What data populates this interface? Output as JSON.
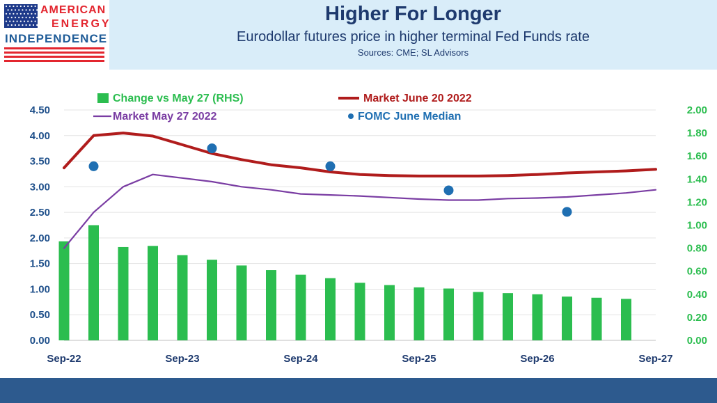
{
  "logo": {
    "line1": "AMERICAN",
    "line2": "ENERGY",
    "line3": "INDEPENDENCE"
  },
  "header": {
    "title": "Higher For Longer",
    "subtitle": "Eurodollar futures price in higher terminal Fed Funds rate",
    "sources": "Sources: CME; SL Advisors"
  },
  "colors": {
    "bars": "#2bbd4f",
    "june": "#b01c1c",
    "may": "#7a3da3",
    "fomc": "#1f6fb2",
    "left_axis": "#1e4f8a",
    "right_axis": "#2bbd4f"
  },
  "chart_data": {
    "type": "bar",
    "x_ticks": [
      "Sep-22",
      "Sep-23",
      "Sep-24",
      "Sep-25",
      "Sep-26",
      "Sep-27"
    ],
    "legend": [
      {
        "key": "bars",
        "label": "Change vs May 27 (RHS)"
      },
      {
        "key": "june",
        "label": "Market June 20 2022"
      },
      {
        "key": "may",
        "label": "Market May 27 2022"
      },
      {
        "key": "fomc",
        "label": "FOMC June Median"
      }
    ],
    "left_axis": {
      "min": 0,
      "max": 4.5,
      "ticks": [
        "0.00",
        "0.50",
        "1.00",
        "1.50",
        "2.00",
        "2.50",
        "3.00",
        "3.50",
        "4.00",
        "4.50"
      ]
    },
    "right_axis": {
      "min": 0,
      "max": 2.0,
      "ticks": [
        "0.00",
        "0.20",
        "0.40",
        "0.60",
        "0.80",
        "1.00",
        "1.20",
        "1.40",
        "1.60",
        "1.80",
        "2.00"
      ]
    },
    "series": [
      {
        "name": "Change vs May 27 (RHS)",
        "kind": "bar",
        "axis": "right",
        "x": [
          2022.67,
          2022.92,
          2023.17,
          2023.42,
          2023.67,
          2023.92,
          2024.17,
          2024.42,
          2024.67,
          2024.92,
          2025.17,
          2025.42,
          2025.67,
          2025.92,
          2026.17,
          2026.42,
          2026.67,
          2026.92,
          2027.17,
          2027.42
        ],
        "values": [
          0.86,
          1.0,
          0.81,
          0.82,
          0.74,
          0.7,
          0.65,
          0.61,
          0.57,
          0.54,
          0.5,
          0.48,
          0.46,
          0.45,
          0.42,
          0.41,
          0.4,
          0.38,
          0.37,
          0.36
        ]
      },
      {
        "name": "Market June 20 2022",
        "kind": "line",
        "axis": "left",
        "x": [
          2022.67,
          2022.92,
          2023.17,
          2023.42,
          2023.67,
          2023.92,
          2024.17,
          2024.42,
          2024.67,
          2024.92,
          2025.17,
          2025.42,
          2025.67,
          2025.92,
          2026.17,
          2026.42,
          2026.67,
          2026.92,
          2027.17,
          2027.42,
          2027.67
        ],
        "values": [
          3.37,
          4.0,
          4.05,
          3.99,
          3.82,
          3.65,
          3.53,
          3.43,
          3.37,
          3.29,
          3.24,
          3.22,
          3.21,
          3.21,
          3.21,
          3.22,
          3.24,
          3.27,
          3.29,
          3.31,
          3.34
        ]
      },
      {
        "name": "Market May 27 2022",
        "kind": "line",
        "axis": "left",
        "x": [
          2022.67,
          2022.92,
          2023.17,
          2023.42,
          2023.67,
          2023.92,
          2024.17,
          2024.42,
          2024.67,
          2024.92,
          2025.17,
          2025.42,
          2025.67,
          2025.92,
          2026.17,
          2026.42,
          2026.67,
          2026.92,
          2027.17,
          2027.42,
          2027.67
        ],
        "values": [
          1.8,
          2.5,
          3.0,
          3.24,
          3.17,
          3.1,
          3.0,
          2.94,
          2.86,
          2.84,
          2.82,
          2.79,
          2.76,
          2.74,
          2.74,
          2.77,
          2.78,
          2.8,
          2.84,
          2.88,
          2.94
        ]
      },
      {
        "name": "FOMC June Median",
        "kind": "scatter",
        "axis": "left",
        "x": [
          2022.92,
          2023.92,
          2024.92,
          2025.92,
          2026.92
        ],
        "values": [
          3.4,
          3.75,
          3.4,
          2.93,
          2.51
        ]
      }
    ]
  }
}
